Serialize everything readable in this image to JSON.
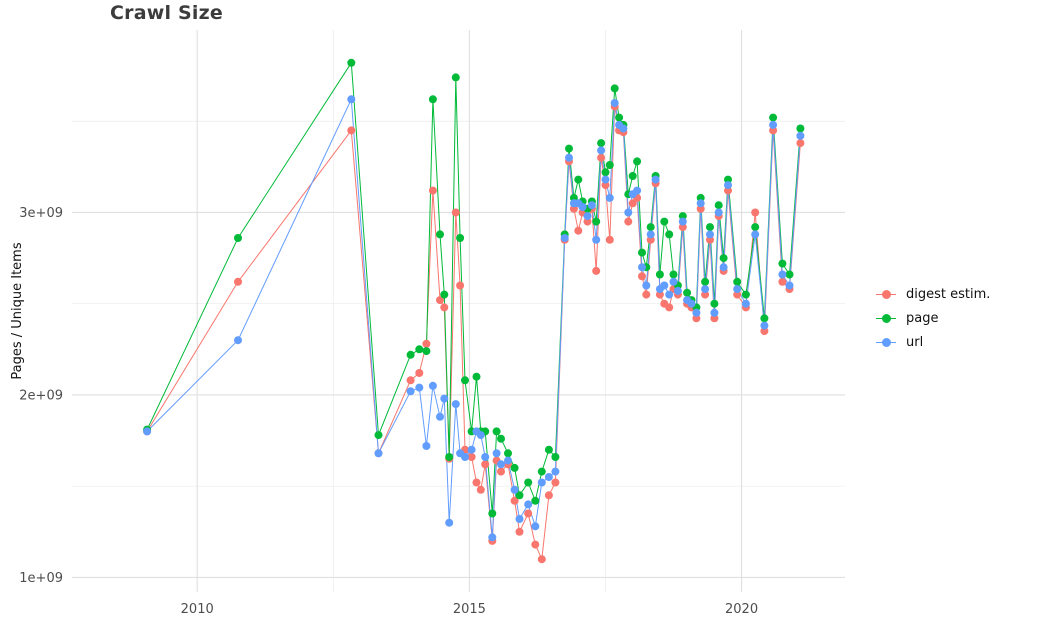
{
  "chart_data": {
    "type": "line",
    "title": "Crawl Size",
    "xlabel": "",
    "ylabel": "Pages / Unique Items",
    "y_unit": "values are billions (×1e9)",
    "xlim": [
      2007.7,
      2021.9
    ],
    "ylim_billions": [
      0.92,
      4.0
    ],
    "grid": true,
    "legend_position": "right",
    "x_ticks": [
      {
        "value": 2010,
        "label": "2010"
      },
      {
        "value": 2015,
        "label": "2015"
      },
      {
        "value": 2020,
        "label": "2020"
      }
    ],
    "x_minor_ticks": [
      2012.5,
      2017.5
    ],
    "y_ticks": [
      {
        "value": 1,
        "label": "1e+09"
      },
      {
        "value": 2,
        "label": "2e+09"
      },
      {
        "value": 3,
        "label": "3e+09"
      }
    ],
    "y_minor_ticks": [
      1.5,
      2.5,
      3.5
    ],
    "colors": {
      "grid_major": "#e0e0e0",
      "grid_minor": "#ebebeb",
      "axis_text": "#4d4d4d",
      "title_text": "#3c3c3c"
    },
    "x": [
      2009.08,
      2010.75,
      2012.83,
      2013.33,
      2013.92,
      2014.08,
      2014.21,
      2014.33,
      2014.46,
      2014.54,
      2014.63,
      2014.75,
      2014.83,
      2014.92,
      2015.04,
      2015.13,
      2015.21,
      2015.29,
      2015.42,
      2015.5,
      2015.58,
      2015.71,
      2015.83,
      2015.92,
      2016.08,
      2016.21,
      2016.33,
      2016.46,
      2016.58,
      2016.75,
      2016.83,
      2016.92,
      2017.0,
      2017.08,
      2017.17,
      2017.25,
      2017.33,
      2017.42,
      2017.5,
      2017.58,
      2017.67,
      2017.75,
      2017.83,
      2017.92,
      2018.0,
      2018.08,
      2018.17,
      2018.25,
      2018.33,
      2018.42,
      2018.5,
      2018.58,
      2018.67,
      2018.75,
      2018.83,
      2018.92,
      2019.0,
      2019.08,
      2019.17,
      2019.25,
      2019.33,
      2019.42,
      2019.5,
      2019.58,
      2019.67,
      2019.75,
      2019.92,
      2020.08,
      2020.25,
      2020.42,
      2020.58,
      2020.75,
      2020.88,
      2021.08
    ],
    "series": [
      {
        "name": "digest estim.",
        "color": "#F8766D",
        "values": [
          1.8,
          2.62,
          3.45,
          1.68,
          2.08,
          2.12,
          2.28,
          3.12,
          2.52,
          2.48,
          1.65,
          3.0,
          2.6,
          1.7,
          1.66,
          1.52,
          1.48,
          1.62,
          1.2,
          1.64,
          1.58,
          1.62,
          1.42,
          1.25,
          1.35,
          1.18,
          1.1,
          1.45,
          1.52,
          2.85,
          3.28,
          3.02,
          2.9,
          3.0,
          2.95,
          3.02,
          2.68,
          3.3,
          3.15,
          2.85,
          3.58,
          3.45,
          3.44,
          2.95,
          3.05,
          3.08,
          2.65,
          2.55,
          2.85,
          3.16,
          2.55,
          2.5,
          2.48,
          2.58,
          2.55,
          2.92,
          2.5,
          2.48,
          2.42,
          3.02,
          2.55,
          2.85,
          2.42,
          2.98,
          2.68,
          3.12,
          2.55,
          2.48,
          3.0,
          2.35,
          3.45,
          2.62,
          2.58,
          3.38
        ]
      },
      {
        "name": "page",
        "color": "#00BA38",
        "values": [
          1.81,
          2.86,
          3.82,
          1.78,
          2.22,
          2.25,
          2.24,
          3.62,
          2.88,
          2.55,
          1.66,
          3.74,
          2.86,
          2.08,
          1.8,
          2.1,
          1.8,
          1.8,
          1.35,
          1.8,
          1.76,
          1.68,
          1.6,
          1.45,
          1.52,
          1.42,
          1.58,
          1.7,
          1.66,
          2.88,
          3.35,
          3.08,
          3.18,
          3.06,
          3.02,
          3.06,
          2.95,
          3.38,
          3.22,
          3.26,
          3.68,
          3.52,
          3.48,
          3.1,
          3.2,
          3.28,
          2.78,
          2.7,
          2.92,
          3.2,
          2.66,
          2.95,
          2.88,
          2.66,
          2.6,
          2.98,
          2.56,
          2.52,
          2.48,
          3.08,
          2.62,
          2.92,
          2.5,
          3.04,
          2.75,
          3.18,
          2.62,
          2.55,
          2.92,
          2.42,
          3.52,
          2.72,
          2.66,
          3.46
        ]
      },
      {
        "name": "url",
        "color": "#619CFF",
        "values": [
          1.8,
          2.3,
          3.62,
          1.68,
          2.02,
          2.04,
          1.72,
          2.05,
          1.88,
          1.98,
          1.3,
          1.95,
          1.68,
          1.66,
          1.7,
          1.8,
          1.78,
          1.66,
          1.22,
          1.68,
          1.62,
          1.64,
          1.48,
          1.32,
          1.4,
          1.28,
          1.52,
          1.55,
          1.58,
          2.86,
          3.3,
          3.05,
          3.05,
          3.03,
          2.98,
          3.04,
          2.85,
          3.34,
          3.18,
          3.08,
          3.6,
          3.48,
          3.46,
          3.0,
          3.1,
          3.12,
          2.7,
          2.6,
          2.88,
          3.18,
          2.58,
          2.6,
          2.55,
          2.62,
          2.57,
          2.95,
          2.52,
          2.5,
          2.45,
          3.05,
          2.58,
          2.88,
          2.45,
          3.0,
          2.7,
          3.15,
          2.58,
          2.5,
          2.88,
          2.38,
          3.48,
          2.66,
          2.6,
          3.42
        ]
      }
    ]
  }
}
